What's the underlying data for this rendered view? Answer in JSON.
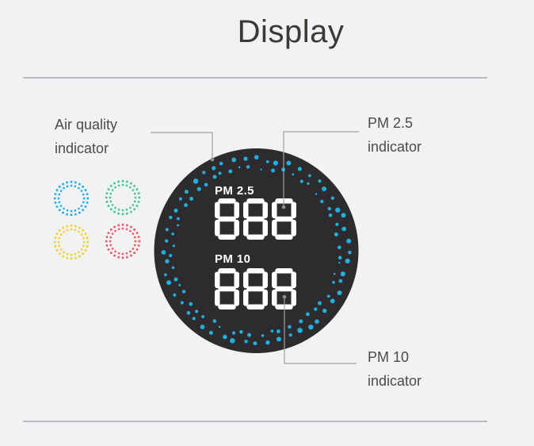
{
  "page": {
    "title": "Display",
    "background_color": "#f1f2f3",
    "divider_color": "#b9bbbe"
  },
  "callouts": {
    "air_quality": {
      "line1": "Air quality",
      "line2": "indicator"
    },
    "pm25": {
      "line1": "PM 2.5",
      "line2": "indicator"
    },
    "pm10": {
      "line1": "PM 10",
      "line2": "indicator"
    },
    "line_color": "#9da0a2",
    "dot_color": "#8e9092"
  },
  "air_quality_indicator": {
    "colors": [
      "#29abe2",
      "#43c49a",
      "#f2cf2e",
      "#ee5766"
    ]
  },
  "device": {
    "body_color": "#2e2b2f",
    "led_ring_color": "#1fb0dd",
    "digit_color": "#ffffff",
    "pm25_label": "PM 2.5",
    "pm25_value": "888",
    "pm10_label": "PM 10",
    "pm10_value": "888"
  }
}
